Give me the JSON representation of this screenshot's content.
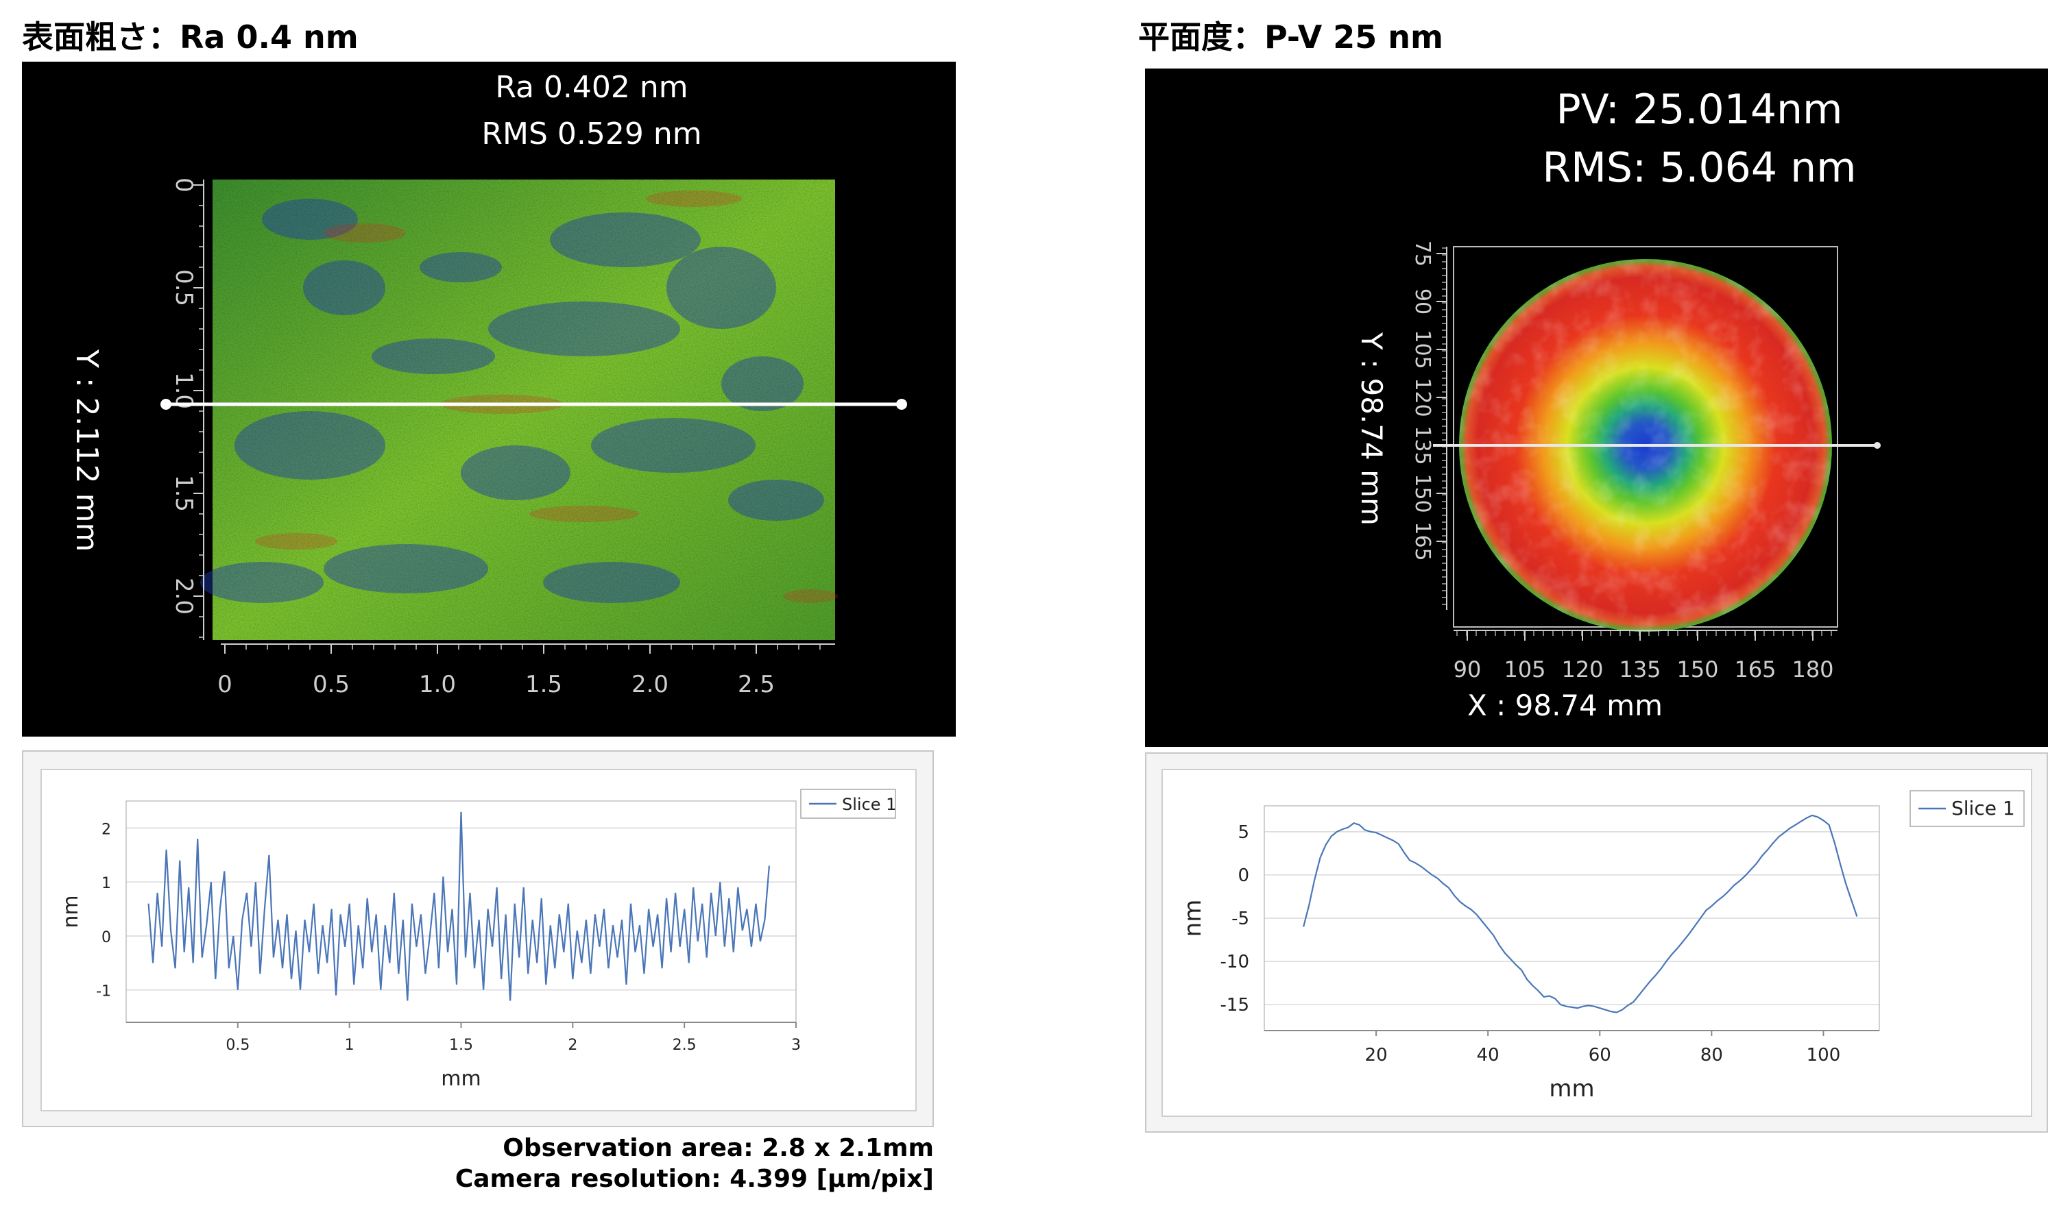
{
  "left": {
    "title": "表面粗さ：Ra 0.4 nm",
    "stats": {
      "ra": "Ra 0.402 nm",
      "rms": "RMS 0.529 nm"
    },
    "map": {
      "y_label": "Y : 2.112 mm",
      "x_ticks": [
        "0",
        "0.5",
        "1.0",
        "1.5",
        "2.0",
        "2.5"
      ],
      "y_ticks": [
        "0",
        "0.5",
        "1.0",
        "1.5",
        "2.0"
      ]
    },
    "note_area": "Observation area: 2.8 x 2.1mm",
    "note_camera": "Camera resolution: 4.399 [µm/pix]"
  },
  "right": {
    "title": "平面度：P-V 25 nm",
    "stats": {
      "pv": "PV: 25.014nm",
      "rms": "RMS: 5.064   nm"
    },
    "map": {
      "y_label": "Y : 98.74 mm",
      "x_label": "X : 98.74 mm",
      "x_ticks": [
        "90",
        "105",
        "120",
        "135",
        "150",
        "165",
        "180"
      ],
      "y_ticks": [
        "75",
        "90",
        "105",
        "120",
        "135",
        "150",
        "165"
      ]
    }
  },
  "colors": {
    "series": "#4a76b8",
    "grid": "#d9d9d9",
    "map_green": "#6cc02a",
    "map_blue": "#1e3fb5",
    "map_red": "#e4271e"
  },
  "chart_data": [
    {
      "type": "line",
      "series": [
        {
          "name": "Slice 1",
          "x": [
            0.1,
            0.12,
            0.14,
            0.16,
            0.18,
            0.2,
            0.22,
            0.24,
            0.26,
            0.28,
            0.3,
            0.32,
            0.34,
            0.36,
            0.38,
            0.4,
            0.42,
            0.44,
            0.46,
            0.48,
            0.5,
            0.52,
            0.54,
            0.56,
            0.58,
            0.6,
            0.62,
            0.64,
            0.66,
            0.68,
            0.7,
            0.72,
            0.74,
            0.76,
            0.78,
            0.8,
            0.82,
            0.84,
            0.86,
            0.88,
            0.9,
            0.92,
            0.94,
            0.96,
            0.98,
            1.0,
            1.02,
            1.04,
            1.06,
            1.08,
            1.1,
            1.12,
            1.14,
            1.16,
            1.18,
            1.2,
            1.22,
            1.24,
            1.26,
            1.28,
            1.3,
            1.32,
            1.34,
            1.36,
            1.38,
            1.4,
            1.42,
            1.44,
            1.46,
            1.48,
            1.5,
            1.52,
            1.54,
            1.56,
            1.58,
            1.6,
            1.62,
            1.64,
            1.66,
            1.68,
            1.7,
            1.72,
            1.74,
            1.76,
            1.78,
            1.8,
            1.82,
            1.84,
            1.86,
            1.88,
            1.9,
            1.92,
            1.94,
            1.96,
            1.98,
            2.0,
            2.02,
            2.04,
            2.06,
            2.08,
            2.1,
            2.12,
            2.14,
            2.16,
            2.18,
            2.2,
            2.22,
            2.24,
            2.26,
            2.28,
            2.3,
            2.32,
            2.34,
            2.36,
            2.38,
            2.4,
            2.42,
            2.44,
            2.46,
            2.48,
            2.5,
            2.52,
            2.54,
            2.56,
            2.58,
            2.6,
            2.62,
            2.64,
            2.66,
            2.68,
            2.7,
            2.72,
            2.74,
            2.76,
            2.78,
            2.8,
            2.82,
            2.84,
            2.86,
            2.88
          ],
          "values": [
            0.6,
            -0.5,
            0.8,
            -0.2,
            1.6,
            0.1,
            -0.6,
            1.4,
            -0.3,
            0.9,
            -0.5,
            1.8,
            -0.4,
            0.2,
            1.0,
            -0.8,
            0.5,
            1.2,
            -0.6,
            0.0,
            -1.0,
            0.3,
            0.8,
            -0.2,
            1.0,
            -0.7,
            0.5,
            1.5,
            -0.4,
            0.3,
            -0.6,
            0.4,
            -0.8,
            0.1,
            -1.0,
            0.3,
            -0.3,
            0.6,
            -0.7,
            0.2,
            -0.5,
            0.5,
            -1.1,
            0.4,
            -0.2,
            0.6,
            -0.9,
            0.2,
            -0.6,
            0.7,
            -0.3,
            0.4,
            -1.0,
            0.2,
            -0.5,
            0.8,
            -0.7,
            0.3,
            -1.2,
            0.6,
            -0.2,
            0.4,
            -0.7,
            0.0,
            0.8,
            -0.6,
            1.1,
            -0.3,
            0.5,
            -0.9,
            2.3,
            -0.4,
            0.8,
            -0.6,
            0.3,
            -1.0,
            0.5,
            -0.2,
            0.9,
            -0.8,
            0.4,
            -1.2,
            0.6,
            -0.4,
            0.9,
            -0.7,
            0.3,
            -0.5,
            0.7,
            -0.9,
            0.2,
            -0.6,
            0.4,
            -0.3,
            0.6,
            -0.8,
            0.1,
            -0.5,
            0.3,
            -0.7,
            0.4,
            -0.2,
            0.5,
            -0.6,
            0.2,
            -0.4,
            0.3,
            -0.9,
            0.6,
            -0.3,
            0.2,
            -0.7,
            0.5,
            -0.2,
            0.4,
            -0.6,
            0.7,
            -0.3,
            0.8,
            -0.2,
            0.5,
            -0.5,
            0.9,
            -0.1,
            0.6,
            -0.4,
            0.8,
            0.0,
            1.0,
            -0.2,
            0.7,
            -0.3,
            0.9,
            0.1,
            0.5,
            -0.2,
            0.6,
            -0.1,
            0.3,
            1.3
          ]
        }
      ],
      "xlabel": "mm",
      "ylabel": "nm",
      "xlim": [
        0,
        3
      ],
      "ylim": [
        -1.6,
        2.5
      ],
      "x_ticks": [
        0.5,
        1,
        1.5,
        2,
        2.5,
        3
      ],
      "y_ticks": [
        -1,
        0,
        1,
        2
      ],
      "grid": true,
      "legend": "top-right"
    },
    {
      "type": "line",
      "series": [
        {
          "name": "Slice 1",
          "x": [
            7,
            8,
            9,
            10,
            11,
            12,
            13,
            14,
            15,
            16,
            17,
            18,
            19,
            20,
            21,
            22,
            23,
            24,
            25,
            26,
            27,
            28,
            29,
            30,
            31,
            32,
            33,
            34,
            35,
            36,
            37,
            38,
            39,
            40,
            41,
            42,
            43,
            44,
            45,
            46,
            47,
            48,
            49,
            50,
            51,
            52,
            53,
            54,
            55,
            56,
            57,
            58,
            59,
            60,
            61,
            62,
            63,
            64,
            65,
            66,
            67,
            68,
            69,
            70,
            71,
            72,
            73,
            74,
            75,
            76,
            77,
            78,
            79,
            80,
            81,
            82,
            83,
            84,
            85,
            86,
            87,
            88,
            89,
            90,
            91,
            92,
            93,
            94,
            95,
            96,
            97,
            98,
            99,
            100,
            101,
            102,
            103,
            104,
            105,
            106
          ],
          "values": [
            -6.0,
            -3.5,
            -0.5,
            2.0,
            3.5,
            4.5,
            5.0,
            5.3,
            5.5,
            6.0,
            5.8,
            5.2,
            5.0,
            4.9,
            4.6,
            4.3,
            4.0,
            3.6,
            2.6,
            1.7,
            1.4,
            1.0,
            0.5,
            0.0,
            -0.4,
            -1.0,
            -1.5,
            -2.4,
            -3.1,
            -3.6,
            -4.0,
            -4.6,
            -5.4,
            -6.2,
            -7.0,
            -8.1,
            -9.0,
            -9.7,
            -10.4,
            -11.0,
            -12.1,
            -12.8,
            -13.4,
            -14.1,
            -14.0,
            -14.3,
            -15.0,
            -15.2,
            -15.3,
            -15.4,
            -15.2,
            -15.1,
            -15.2,
            -15.4,
            -15.6,
            -15.8,
            -15.9,
            -15.6,
            -15.1,
            -14.7,
            -13.9,
            -13.1,
            -12.3,
            -11.6,
            -10.8,
            -9.9,
            -9.1,
            -8.4,
            -7.6,
            -6.8,
            -5.9,
            -5.0,
            -4.1,
            -3.6,
            -3.0,
            -2.5,
            -1.9,
            -1.2,
            -0.7,
            -0.1,
            0.6,
            1.3,
            2.2,
            2.9,
            3.7,
            4.4,
            4.9,
            5.4,
            5.8,
            6.2,
            6.6,
            6.9,
            6.7,
            6.3,
            5.8,
            3.7,
            1.3,
            -1.0,
            -2.9,
            -4.8
          ]
        }
      ],
      "xlabel": "mm",
      "ylabel": "nm",
      "xlim": [
        0,
        110
      ],
      "ylim": [
        -18,
        8
      ],
      "x_ticks": [
        20,
        40,
        60,
        80,
        100
      ],
      "y_ticks": [
        5,
        0,
        -5,
        -10,
        -15
      ],
      "grid": true,
      "legend": "top-right"
    }
  ]
}
